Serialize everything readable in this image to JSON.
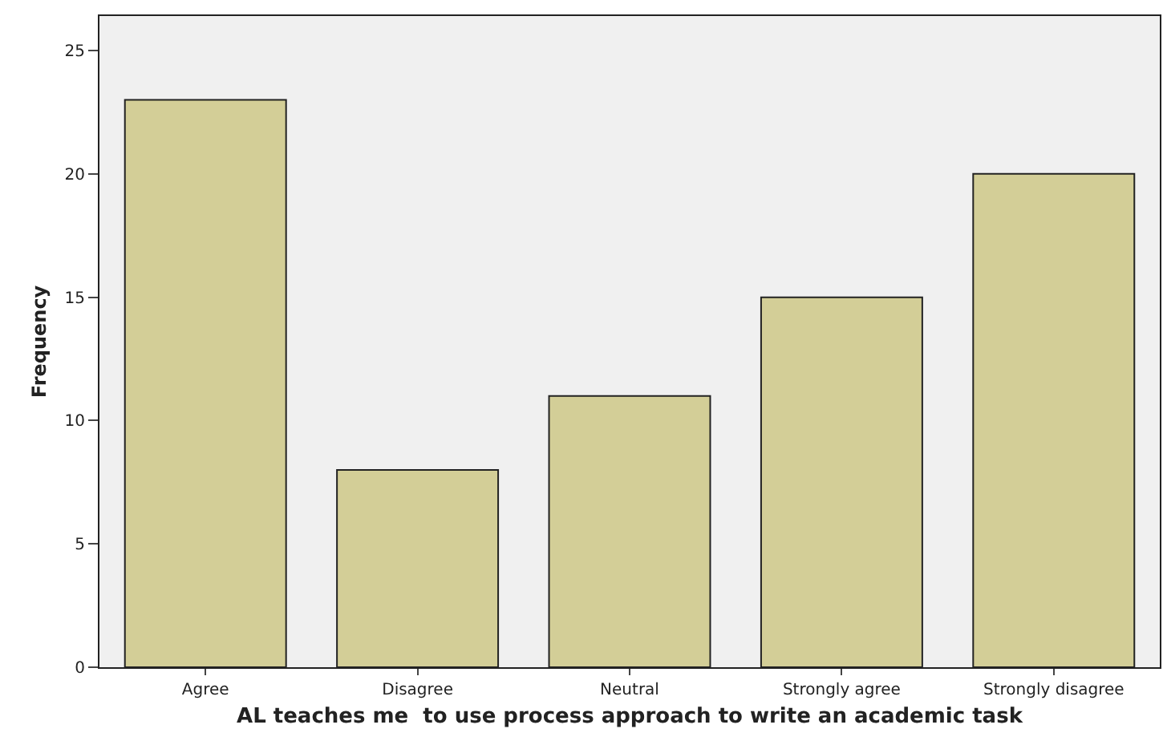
{
  "chart_data": {
    "type": "bar",
    "xlabel": "AL teaches me  to use process approach to write an academic task",
    "ylabel": "Frequency",
    "categories": [
      "Agree",
      "Disagree",
      "Neutral",
      "Strongly agree",
      "Strongly disagree"
    ],
    "values": [
      23,
      8,
      11,
      15,
      20
    ],
    "color": "#d3ce97",
    "ylim": [
      0,
      26.4
    ],
    "yticks": [
      0,
      5,
      10,
      15,
      20,
      25
    ],
    "grid": false,
    "legend": false
  }
}
